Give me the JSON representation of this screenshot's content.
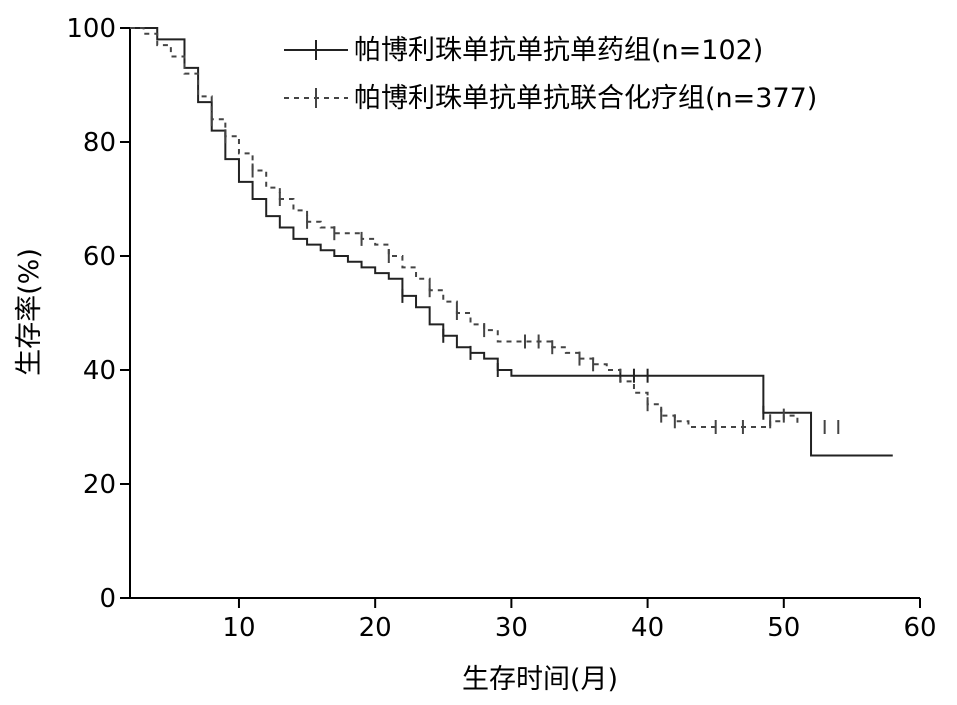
{
  "chart_data": {
    "type": "line",
    "xlabel": "生存时间(月)",
    "ylabel": "生存率(%)",
    "xlim": [
      2,
      60
    ],
    "ylim": [
      0,
      100
    ],
    "xticks": [
      10,
      20,
      30,
      40,
      50,
      60
    ],
    "yticks": [
      0,
      20,
      40,
      60,
      80,
      100
    ],
    "grid": false,
    "legend_position": "top-right",
    "series": [
      {
        "name": "帕博利珠单抗单抗单药组(n=102)",
        "line_style": "solid",
        "color": "#222222",
        "x": [
          2,
          4,
          6,
          7,
          8,
          9,
          10,
          11,
          12,
          13,
          14,
          15,
          16,
          17,
          18,
          19,
          20,
          21,
          22,
          23,
          24,
          25,
          26,
          27,
          28,
          29,
          30,
          48.5,
          48.5,
          52,
          58
        ],
        "y": [
          100,
          98,
          93,
          87,
          82,
          77,
          73,
          70,
          67,
          65,
          63,
          62,
          61,
          60,
          59,
          58,
          57,
          56,
          53,
          51,
          48,
          46,
          44,
          43,
          42,
          40,
          39,
          39,
          32.5,
          25,
          25
        ],
        "censored_x": [
          22,
          25,
          27,
          29,
          38,
          39,
          40,
          48.5
        ]
      },
      {
        "name": "帕博利珠单抗单抗联合化疗组(n=377)",
        "line_style": "dashed",
        "color": "#444444",
        "x": [
          2,
          3,
          4,
          5,
          6,
          7,
          8,
          9,
          10,
          11,
          12,
          13,
          14,
          15,
          16,
          17,
          18,
          19,
          20,
          21,
          22,
          23,
          24,
          25,
          26,
          27,
          28,
          29,
          30,
          31,
          32,
          33,
          34,
          35,
          36,
          37,
          38,
          39,
          40,
          41,
          42,
          43,
          44,
          45,
          46,
          47,
          48,
          49,
          50,
          51
        ],
        "y": [
          100,
          99,
          97,
          95,
          92,
          88,
          84,
          81,
          78,
          75,
          72,
          70,
          68,
          66,
          65,
          64,
          64,
          63,
          62,
          60,
          58,
          56,
          54,
          52,
          50,
          48,
          47,
          45,
          45,
          45,
          45,
          44,
          43,
          42,
          41,
          40,
          38,
          36,
          34,
          32,
          31,
          30,
          30,
          30,
          30,
          30,
          30,
          31,
          32,
          30
        ],
        "censored_x": [
          8,
          9,
          11,
          13,
          15,
          17,
          19,
          21,
          24,
          26,
          28,
          31,
          32,
          33,
          35,
          36,
          40,
          41,
          42,
          45,
          47,
          49,
          50,
          53,
          54
        ]
      }
    ]
  }
}
